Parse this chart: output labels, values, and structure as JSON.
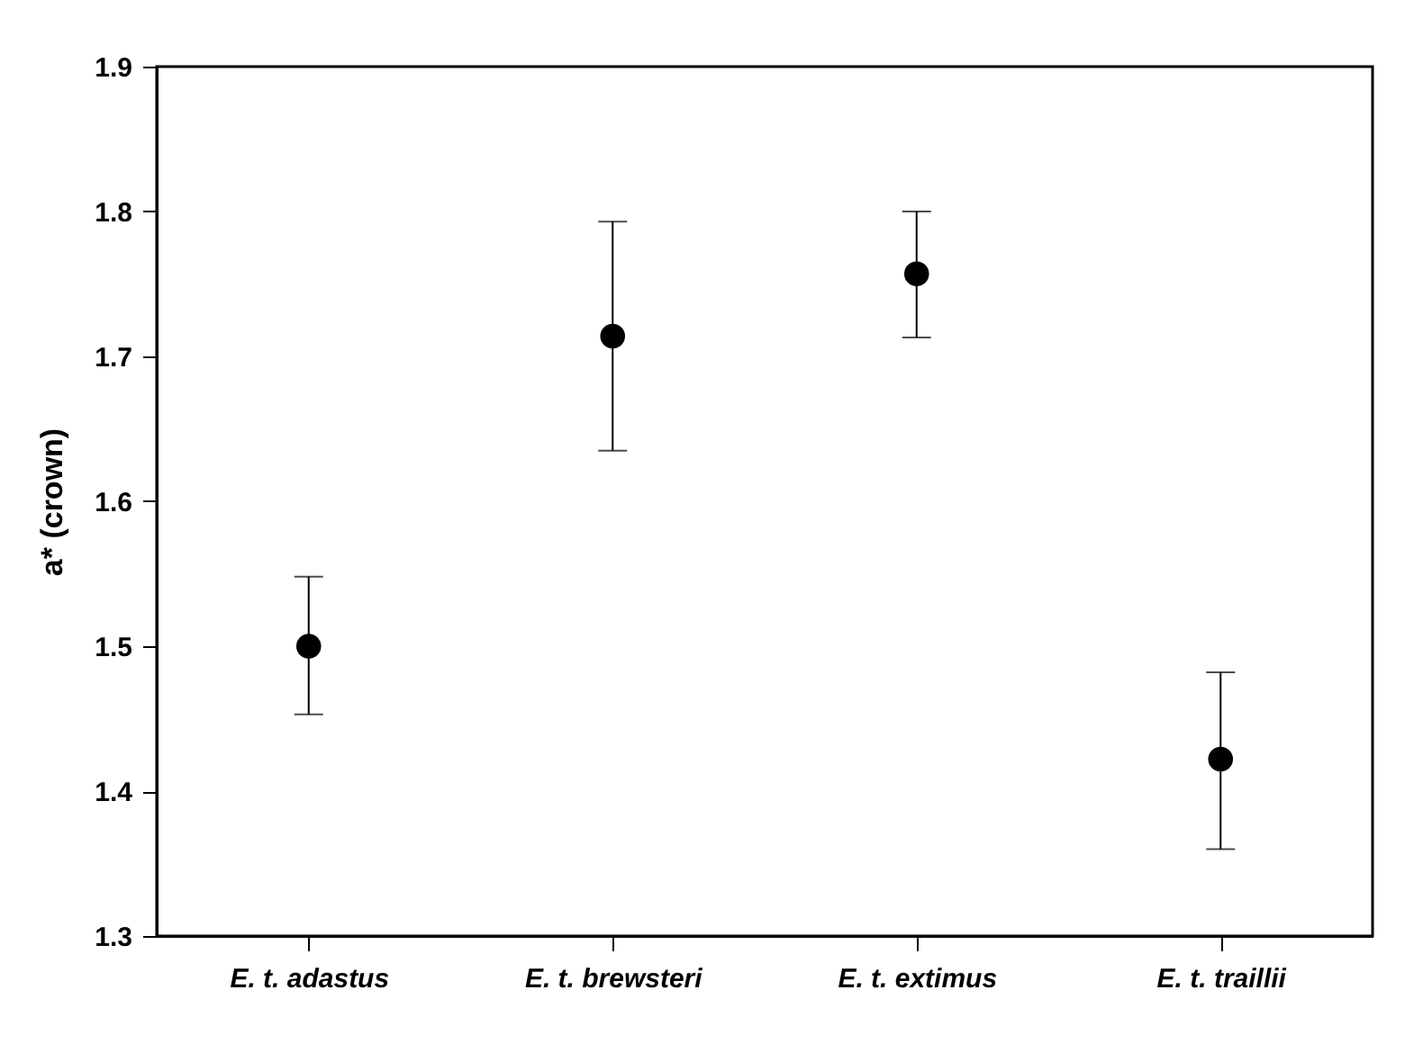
{
  "chart_data": {
    "type": "scatter",
    "ylabel": "a* (crown)",
    "categories": [
      "E. t. adastus",
      "E. t. brewsteri",
      "E. t. extimus",
      "E. t. traillii"
    ],
    "values": [
      1.5,
      1.714,
      1.757,
      1.422
    ],
    "errors": [
      [
        1.453,
        1.548
      ],
      [
        1.635,
        1.793
      ],
      [
        1.713,
        1.8
      ],
      [
        1.36,
        1.482
      ]
    ],
    "color": "#000000",
    "marker": "circle",
    "ylim": [
      1.3,
      1.9
    ],
    "yticks": [
      1.3,
      1.4,
      1.5,
      1.6,
      1.7,
      1.8,
      1.9
    ],
    "grid": false
  }
}
